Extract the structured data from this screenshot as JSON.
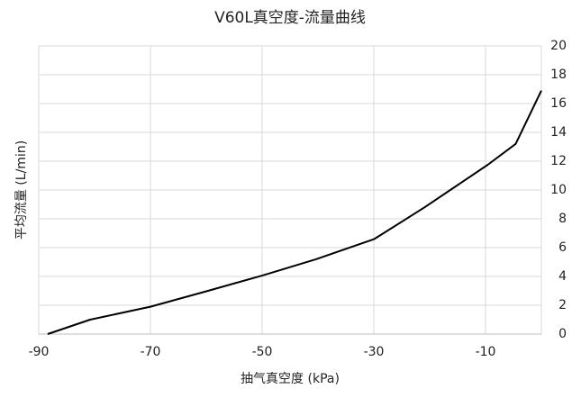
{
  "chart_data": {
    "type": "line",
    "title": "V60L真空度-流量曲线",
    "x_label": "抽气真空度 (kPa)",
    "y_label": "平均流量 (L/min)",
    "x": [
      -88.4,
      -80.8,
      -70,
      -59.7,
      -50,
      -40.3,
      -29.9,
      -20.9,
      -9.6,
      -4.6,
      0
    ],
    "series": [
      {
        "name": "V60L",
        "color": "#000000",
        "values": [
          0,
          1.0,
          1.9,
          3.0,
          4.06,
          5.2,
          6.6,
          8.8,
          11.75,
          13.2,
          16.9
        ]
      }
    ],
    "xlim": [
      -90,
      0
    ],
    "xticks": [
      -90,
      -70,
      -50,
      -30,
      -10
    ],
    "ylim": [
      0,
      20
    ],
    "yticks": [
      0,
      2,
      4,
      6,
      8,
      10,
      12,
      14,
      16,
      18,
      20
    ],
    "grid": true,
    "y_axis_side": "right"
  }
}
